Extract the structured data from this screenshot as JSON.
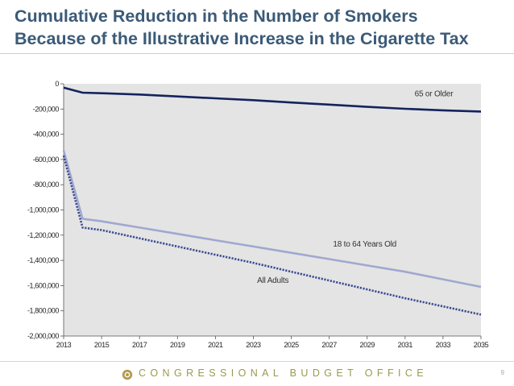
{
  "slide": {
    "title_line1": "Cumulative Reduction in the Number of Smokers",
    "title_line2": "Because of the Illustrative Increase in the Cigarette Tax",
    "footer": "CONGRESSIONAL BUDGET OFFICE",
    "footer_logo": "cbo-logo-icon",
    "page_number": "9"
  },
  "colors": {
    "title": "#3b5a77",
    "plot_bg": "#e4e4e4",
    "series_65_or_older": "#14235e",
    "series_18_to_64": "#a0a8cf",
    "series_all_adults": "#3b4a92",
    "footer_text": "#9a9a4a"
  },
  "chart_data": {
    "type": "line",
    "title": "Cumulative Reduction in the Number of Smokers Because of the Illustrative Increase in the Cigarette Tax",
    "xlabel": "",
    "ylabel": "",
    "xlim": [
      2013,
      2035
    ],
    "ylim": [
      -2000000,
      0
    ],
    "grid": false,
    "x_ticks": [
      "2013",
      "2015",
      "2017",
      "2019",
      "2021",
      "2023",
      "2025",
      "2027",
      "2029",
      "2031",
      "2033",
      "2035"
    ],
    "y_ticks": [
      {
        "value": 0,
        "label": "0"
      },
      {
        "value": -200000,
        "label": "-200,000"
      },
      {
        "value": -400000,
        "label": "-400,000"
      },
      {
        "value": -600000,
        "label": "-600,000"
      },
      {
        "value": -800000,
        "label": "-800,000"
      },
      {
        "value": -1000000,
        "label": "-1,000,000"
      },
      {
        "value": -1200000,
        "label": "-1,200,000"
      },
      {
        "value": -1400000,
        "label": "-1,400,000"
      },
      {
        "value": -1600000,
        "label": "-1,600,000"
      },
      {
        "value": -1800000,
        "label": "-1,800,000"
      },
      {
        "value": -2000000,
        "label": "-2,000,000"
      }
    ],
    "series": [
      {
        "name": "65 or Older",
        "label": "65 or Older",
        "style": "solid",
        "x": [
          2013,
          2014,
          2015,
          2017,
          2019,
          2021,
          2023,
          2025,
          2027,
          2029,
          2031,
          2033,
          2035
        ],
        "values": [
          -30000,
          -70000,
          -75000,
          -85000,
          -100000,
          -115000,
          -130000,
          -148000,
          -165000,
          -183000,
          -198000,
          -210000,
          -220000
        ]
      },
      {
        "name": "18 to 64 Years Old",
        "label": "18 to 64 Years Old",
        "style": "solid",
        "x": [
          2013,
          2014,
          2015,
          2017,
          2019,
          2021,
          2023,
          2025,
          2027,
          2029,
          2031,
          2033,
          2035
        ],
        "values": [
          -530000,
          -1070000,
          -1090000,
          -1140000,
          -1190000,
          -1240000,
          -1290000,
          -1340000,
          -1390000,
          -1440000,
          -1490000,
          -1550000,
          -1610000
        ]
      },
      {
        "name": "All Adults",
        "label": "All Adults",
        "style": "dotted",
        "x": [
          2013,
          2014,
          2015,
          2017,
          2019,
          2021,
          2023,
          2025,
          2027,
          2029,
          2031,
          2033,
          2035
        ],
        "values": [
          -570000,
          -1140000,
          -1160000,
          -1225000,
          -1290000,
          -1355000,
          -1420000,
          -1490000,
          -1560000,
          -1630000,
          -1700000,
          -1765000,
          -1830000
        ]
      }
    ],
    "annotations": [
      {
        "text": "65 or Older",
        "series": "65 or Older",
        "x": 2031.5,
        "y": -80000
      },
      {
        "text": "18 to 64 Years Old",
        "series": "18 to 64 Years Old",
        "x": 2027.2,
        "y": -1270000
      },
      {
        "text": "All Adults",
        "series": "All Adults",
        "x": 2023.2,
        "y": -1560000
      }
    ]
  }
}
